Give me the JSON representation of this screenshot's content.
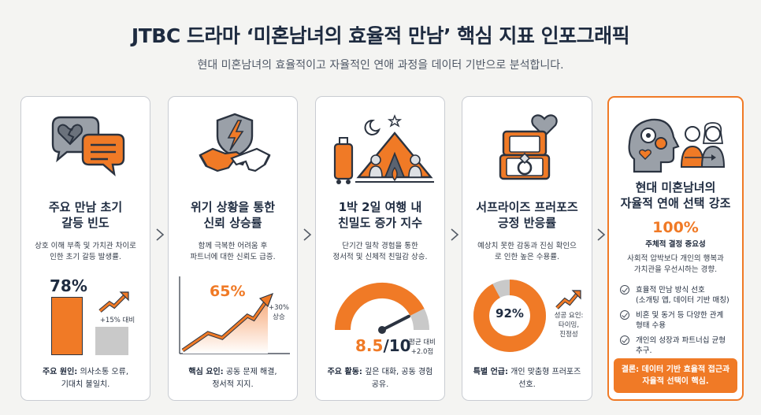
{
  "header": {
    "title": "JTBC 드라마 ‘미혼남녀의 효율적 만남’ 핵심 지표 인포그래픽",
    "subtitle": "현대 미혼남녀의 효율적이고 자율적인 연애 과정을 데이터 기반으로 분석합니다."
  },
  "colors": {
    "accent": "#f07a26",
    "navy": "#1e2b40",
    "gray": "#c9c9c9"
  },
  "cards": [
    {
      "icon": "broken-heart-speech-icon",
      "title_l1": "주요 만남 초기",
      "title_l2": "갈등 빈도",
      "desc_l1": "상호 이해 부족 및 가치관 차이로",
      "desc_l2": "인한 초기 갈등 발생률.",
      "value": "78%",
      "compare": "+15% 대비",
      "foot_label": "주요 원인:",
      "foot_l1": " 의사소통 오류,",
      "foot_l2": "기대치 불일치."
    },
    {
      "icon": "handshake-shield-icon",
      "title_l1": "위기 상황을 통한",
      "title_l2": "신뢰 상승률",
      "desc_l1": "함께 극복한 어려움 후",
      "desc_l2": "파트너에 대한 신뢰도 급증.",
      "value": "65%",
      "compare_l1": "+30%",
      "compare_l2": "상승",
      "foot_label": "핵심 요인:",
      "foot_l1": " 공동 문제 해결,",
      "foot_l2": "정서적 지지."
    },
    {
      "icon": "camping-tent-icon",
      "title_l1": "1박 2일 여행 내",
      "title_l2": "친밀도 증가 지수",
      "desc_l1": "단기간 밀착 경험을 통한",
      "desc_l2": "정서적 및 신체적 친밀감 상승.",
      "value_main": "8.5",
      "value_sub": "/10",
      "compare_l1": "평균 대비",
      "compare_l2": "+2.0점",
      "gauge_fraction": 0.85,
      "foot_label": "주요 활동:",
      "foot_l1": " 깊은 대화, 공동 경험",
      "foot_l2": "공유."
    },
    {
      "icon": "ring-box-heart-icon",
      "title_l1": "서프라이즈 프러포즈",
      "title_l2": "긍정 반응률",
      "desc_l1": "예상치 못한 감동과 진심 확인으",
      "desc_l2": "로 인한 높은 수용률.",
      "value": "92%",
      "donut_fraction": 0.92,
      "side_l1": "성공 요인:",
      "side_l2": "타이밍,",
      "side_l3": "진정성",
      "foot_label": "특별 언급:",
      "foot_l1": " 개인 맞춤형 프러포즈",
      "foot_l2": "선호."
    },
    {
      "icon": "head-gears-couple-icon",
      "title_l1": "현대 미혼남녀의",
      "title_l2": "자율적 연애 선택 강조",
      "value": "100%",
      "value_label": "주체적 결정 중요성",
      "desc_l1": "사회적 압박보다 개인의 행복과",
      "desc_l2": "가치관을 우선시하는 경향.",
      "list": [
        {
          "l1": "효율적 만남 방식 선호",
          "l2": "(소개팅 앱, 데이터 기반 매칭)"
        },
        {
          "l1": "비혼 및 동거 등 다양한 관계",
          "l2": "형태 수용"
        },
        {
          "l1": "개인의 성장과 파트너십 균형",
          "l2": "추구."
        }
      ],
      "conclusion_l1": "결론: 데이터 기반 효율적 접근과",
      "conclusion_l2": "자율적 선택이 핵심."
    }
  ]
}
